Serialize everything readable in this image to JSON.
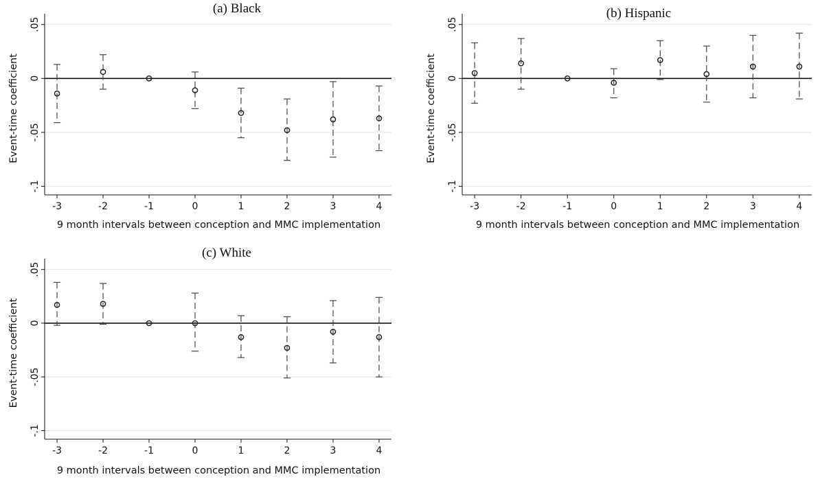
{
  "chart_data": [
    {
      "type": "scatter",
      "title": "(a) Black",
      "xlabel": "9 month intervals between conception and MMC implementation",
      "ylabel": "Event-time coefficient",
      "x": [
        -3,
        -2,
        -1,
        0,
        1,
        2,
        3,
        4
      ],
      "y": [
        -0.014,
        0.006,
        0.0,
        -0.011,
        -0.032,
        -0.048,
        -0.038,
        -0.037
      ],
      "ci_lower": [
        -0.041,
        -0.01,
        0.0,
        -0.028,
        -0.055,
        -0.076,
        -0.073,
        -0.067
      ],
      "ci_upper": [
        0.013,
        0.022,
        0.0,
        0.006,
        -0.009,
        -0.019,
        -0.003,
        -0.007
      ],
      "xticks": [
        "-3",
        "-2",
        "-1",
        "0",
        "1",
        "2",
        "3",
        "4"
      ],
      "yticks": [
        0.05,
        0,
        -0.05,
        -0.1
      ],
      "ytick_labels": [
        ".05",
        "0",
        "-.05",
        "-.1"
      ],
      "ylim": [
        -0.108,
        0.06
      ],
      "xlim": [
        -3.15,
        4.15
      ],
      "reference_line": 0,
      "grid": true
    },
    {
      "type": "scatter",
      "title": "(b) Hispanic",
      "xlabel": "9 month intervals between conception and MMC implementation",
      "ylabel": "Event-time coefficient",
      "x": [
        -3,
        -2,
        -1,
        0,
        1,
        2,
        3,
        4
      ],
      "y": [
        0.005,
        0.014,
        0.0,
        -0.004,
        0.017,
        0.004,
        0.011,
        0.011
      ],
      "ci_lower": [
        -0.023,
        -0.01,
        0.0,
        -0.018,
        -0.001,
        -0.022,
        -0.018,
        -0.019
      ],
      "ci_upper": [
        0.033,
        0.037,
        0.0,
        0.009,
        0.035,
        0.03,
        0.04,
        0.042
      ],
      "xticks": [
        "-3",
        "-2",
        "-1",
        "0",
        "1",
        "2",
        "3",
        "4"
      ],
      "yticks": [
        0.05,
        0,
        -0.05,
        -0.1
      ],
      "ytick_labels": [
        ".05",
        "0",
        "-.05",
        "-.1"
      ],
      "ylim": [
        -0.108,
        0.06
      ],
      "xlim": [
        -3.15,
        4.15
      ],
      "reference_line": 0,
      "grid": true
    },
    {
      "type": "scatter",
      "title": "(c) White",
      "xlabel": "9 month intervals between conception and MMC implementation",
      "ylabel": "Event-time coefficient",
      "x": [
        -3,
        -2,
        -1,
        0,
        1,
        2,
        3,
        4
      ],
      "y": [
        0.017,
        0.018,
        0.0,
        0.0,
        -0.013,
        -0.023,
        -0.008,
        -0.013
      ],
      "ci_lower": [
        -0.002,
        -0.001,
        0.0,
        -0.026,
        -0.032,
        -0.051,
        -0.037,
        -0.05
      ],
      "ci_upper": [
        0.038,
        0.037,
        0.0,
        0.028,
        0.007,
        0.006,
        0.021,
        0.024
      ],
      "xticks": [
        "-3",
        "-2",
        "-1",
        "0",
        "1",
        "2",
        "3",
        "4"
      ],
      "yticks": [
        0.05,
        0,
        -0.05,
        -0.1
      ],
      "ytick_labels": [
        ".05",
        "0",
        "-.05",
        "-.1"
      ],
      "ylim": [
        -0.108,
        0.06
      ],
      "xlim": [
        -3.15,
        4.15
      ],
      "reference_line": 0,
      "grid": true
    }
  ],
  "colors": {
    "background": "#ffffff",
    "grid": "#e6e6e6",
    "axis": "#111111",
    "ci": "#444444",
    "marker": "#222222"
  }
}
